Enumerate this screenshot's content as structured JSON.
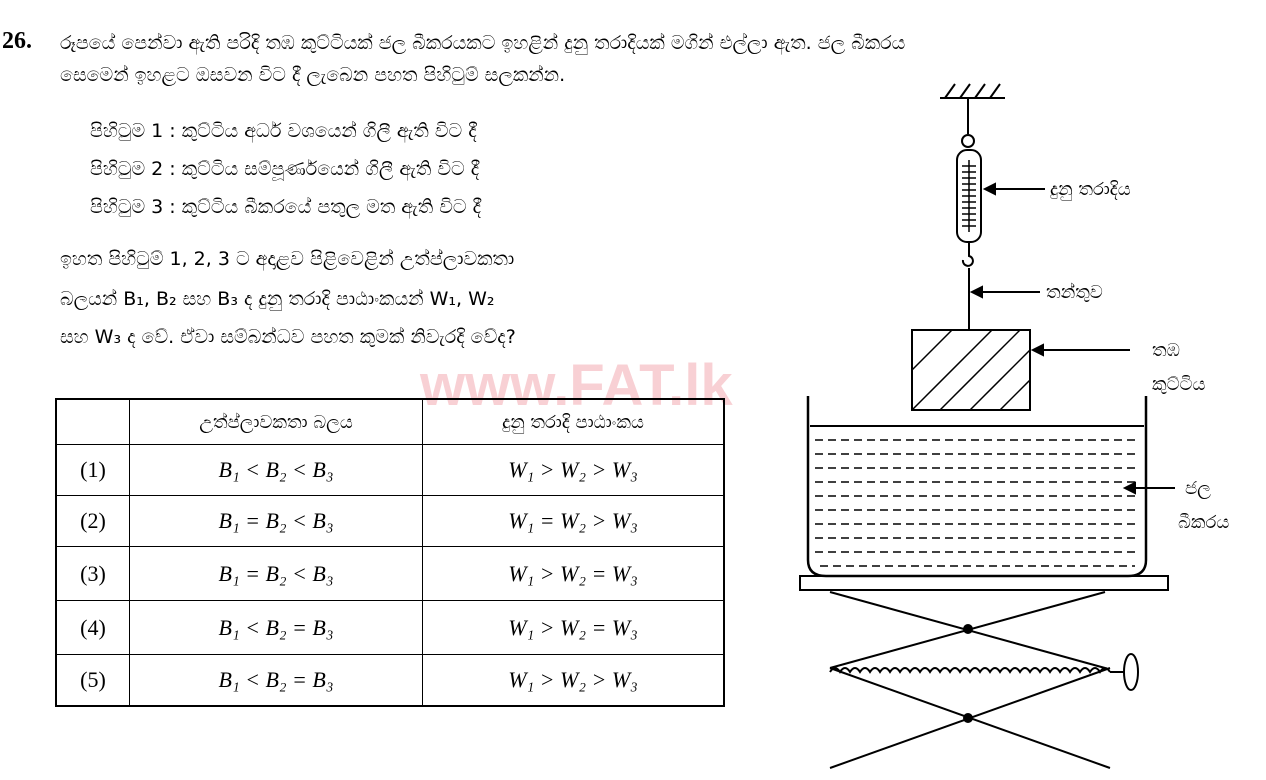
{
  "question": {
    "number": "26.",
    "text_lines": [
      "රූපයේ පෙන්වා ඇති පරිදි තඹ කුට්ටියක් ජල බීකරයකට ඉහළින් දුනු තරාදියක් මගින් එල්ලා ඇත. ජල බීකරය",
      "සෙමෙන් ඉහළට ඔසවන විට දී ලැබෙන පහත පිහිටුම් සලකන්න."
    ],
    "conditions": [
      "පිහිටුම 1 : කුට්ටිය අර්ධ වශයෙන් ගිලී ඇති විට දී",
      "පිහිටුම 2 : කුට්ටිය සම්පූර්ණයෙන් ගිලී ඇති විට දී",
      "පිහිටුම 3 : කුට්ටිය බීකරයේ පතුල මත ඇති විට දී"
    ],
    "paragraph_lines": [
      "ඉහත පිහිටුම් 1, 2, 3 ට අදාළව පිළිවෙළින් උත්ප්ලාවකතා",
      "බලයන් B₁, B₂ සහ B₃ ද දුනු තරාදි පාඨාංකයන් W₁, W₂",
      "සහ W₃ ද වේ. ඒවා සම්බන්ධව පහත කුමක් නිවැරදි වේද?"
    ]
  },
  "watermark": "www.FAT.lk",
  "table": {
    "header": [
      "උත්ප්ලාවකතා බලය",
      "දුනු තරාදි පාඨාංකය"
    ],
    "rows": [
      [
        "(1)",
        "B₁ < B₂ < B₃",
        "W₁ > W₂ > W₃"
      ],
      [
        "(2)",
        "B₁ = B₂ < B₃",
        "W₁ = W₂ > W₃"
      ],
      [
        "(3)",
        "B₁ = B₂ < B₃",
        "W₁ > W₂ = W₃"
      ],
      [
        "(4)",
        "B₁ < B₂ = B₃",
        "W₁ > W₂ = W₃"
      ],
      [
        "(5)",
        "B₁ < B₂ = B₃",
        "W₁ > W₂ > W₃"
      ]
    ]
  },
  "diagram": {
    "labels": [
      "දුනු තරාදිය",
      "තන්තුව",
      "තඹ",
      "කුට්ටිය",
      "ජල",
      "බීකරය"
    ]
  }
}
